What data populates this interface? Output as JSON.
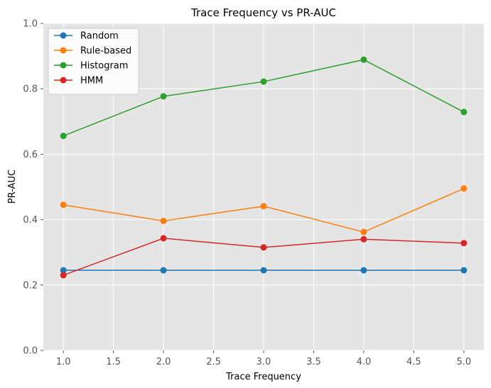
{
  "chart_data": {
    "type": "line",
    "title": "Trace Frequency vs PR-AUC",
    "xlabel": "Trace Frequency",
    "ylabel": "PR-AUC",
    "xlim": [
      0.8,
      5.2
    ],
    "ylim": [
      0.0,
      1.0
    ],
    "xticks": [
      1.0,
      1.5,
      2.0,
      2.5,
      3.0,
      3.5,
      4.0,
      4.5,
      5.0
    ],
    "xtick_labels": [
      "1.0",
      "1.5",
      "2.0",
      "2.5",
      "3.0",
      "3.5",
      "4.0",
      "4.5",
      "5.0"
    ],
    "yticks": [
      0.0,
      0.2,
      0.4,
      0.6,
      0.8,
      1.0
    ],
    "ytick_labels": [
      "0.0",
      "0.2",
      "0.4",
      "0.6",
      "0.8",
      "1.0"
    ],
    "grid": true,
    "legend_position": "top-left",
    "background": "#e5e5e5",
    "x": [
      1,
      2,
      3,
      4,
      5
    ],
    "series": [
      {
        "name": "Random",
        "color": "#1f77b4",
        "values": [
          0.245,
          0.245,
          0.245,
          0.245,
          0.245
        ]
      },
      {
        "name": "Rule-based",
        "color": "#ff7f0e",
        "values": [
          0.445,
          0.396,
          0.441,
          0.362,
          0.495
        ]
      },
      {
        "name": "Histogram",
        "color": "#2ca02c",
        "values": [
          0.656,
          0.777,
          0.822,
          0.889,
          0.729
        ]
      },
      {
        "name": "HMM",
        "color": "#d62728",
        "values": [
          0.23,
          0.343,
          0.315,
          0.34,
          0.328
        ]
      }
    ]
  }
}
